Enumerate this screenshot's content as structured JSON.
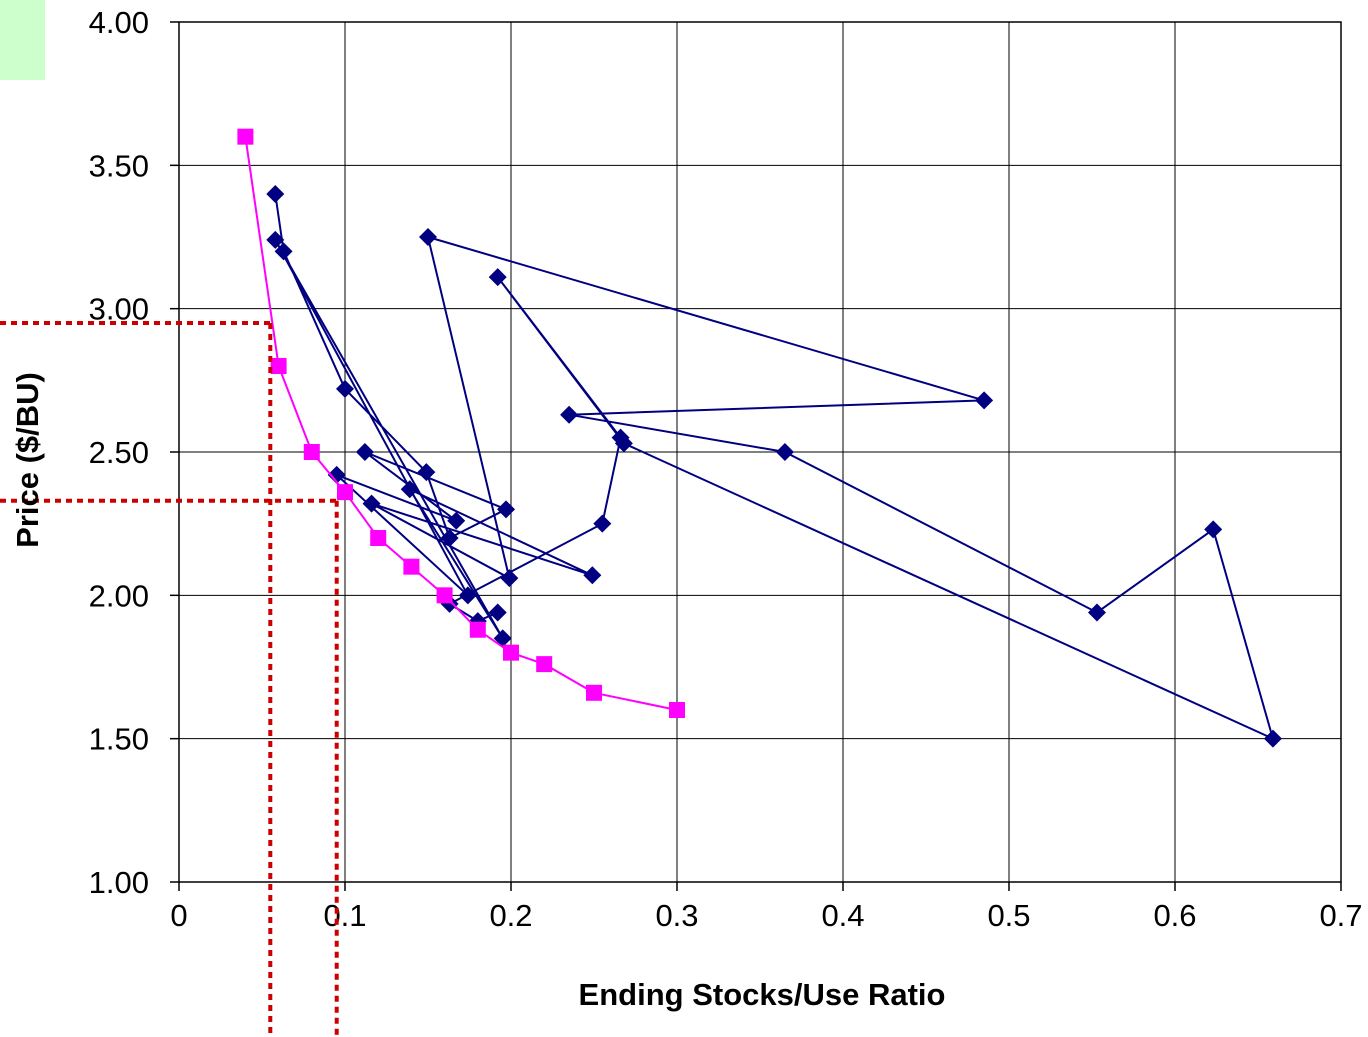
{
  "chart_data": {
    "type": "scatter",
    "title": "",
    "xlabel": "Ending Stocks/Use Ratio",
    "ylabel": "Price ($/BU)",
    "xlim": [
      0,
      0.7
    ],
    "ylim": [
      1.0,
      4.0
    ],
    "x_ticks": [
      0,
      0.1,
      0.2,
      0.3,
      0.4,
      0.5,
      0.6,
      0.7
    ],
    "x_tick_labels": [
      "0",
      "0.1",
      "0.2",
      "0.3",
      "0.4",
      "0.5",
      "0.6",
      "0.7"
    ],
    "y_ticks": [
      1.0,
      1.5,
      2.0,
      2.5,
      3.0,
      3.5,
      4.0
    ],
    "y_tick_labels": [
      "1.00",
      "1.50",
      "2.00",
      "2.50",
      "3.00",
      "3.50",
      "4.00"
    ],
    "grid": true,
    "legend": "none",
    "series": [
      {
        "color": "#000080",
        "marker": "diamond",
        "connected": true,
        "points": [
          [
            0.058,
            3.4
          ],
          [
            0.063,
            3.2
          ],
          [
            0.1,
            2.72
          ],
          [
            0.149,
            2.43
          ],
          [
            0.163,
            2.2
          ],
          [
            0.197,
            2.3
          ],
          [
            0.112,
            2.5
          ],
          [
            0.167,
            2.26
          ],
          [
            0.095,
            2.42
          ],
          [
            0.174,
            2.0
          ],
          [
            0.058,
            3.24
          ],
          [
            0.195,
            1.85
          ],
          [
            0.139,
            2.37
          ],
          [
            0.249,
            2.07
          ],
          [
            0.116,
            2.32
          ],
          [
            0.199,
            2.06
          ],
          [
            0.15,
            3.25
          ],
          [
            0.485,
            2.68
          ],
          [
            0.235,
            2.63
          ],
          [
            0.365,
            2.5
          ],
          [
            0.553,
            1.94
          ],
          [
            0.623,
            2.23
          ],
          [
            0.659,
            1.5
          ],
          [
            0.268,
            2.53
          ],
          [
            0.192,
            3.11
          ],
          [
            0.266,
            2.55
          ],
          [
            0.255,
            2.25
          ],
          [
            0.163,
            1.97
          ],
          [
            0.18,
            1.91
          ],
          [
            0.192,
            1.94
          ]
        ]
      },
      {
        "color": "#ff00ff",
        "marker": "square",
        "connected": true,
        "points": [
          [
            0.04,
            3.6
          ],
          [
            0.06,
            2.8
          ],
          [
            0.08,
            2.5
          ],
          [
            0.1,
            2.36
          ],
          [
            0.12,
            2.2
          ],
          [
            0.14,
            2.1
          ],
          [
            0.16,
            2.0
          ],
          [
            0.18,
            1.88
          ],
          [
            0.2,
            1.8
          ],
          [
            0.22,
            1.76
          ],
          [
            0.25,
            1.66
          ],
          [
            0.3,
            1.6
          ]
        ]
      }
    ],
    "reference_lines": [
      {
        "color": "#cc0000",
        "style": "dotted",
        "x": 0.055,
        "y": 2.95
      },
      {
        "color": "#cc0000",
        "style": "dotted",
        "x": 0.095,
        "y": 2.33
      }
    ],
    "corner_patch_color": "#ccffcc"
  }
}
